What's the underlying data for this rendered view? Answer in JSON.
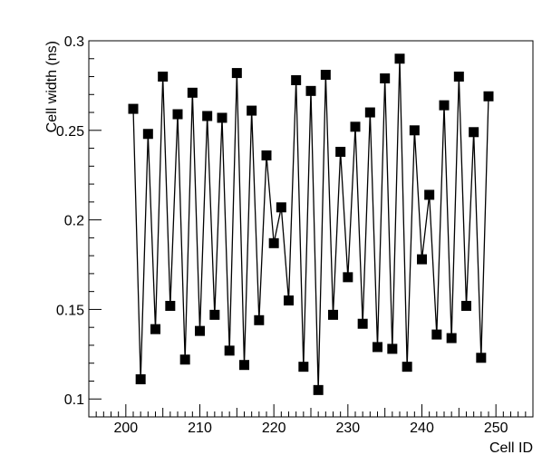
{
  "chart_data": {
    "type": "line",
    "title": "",
    "xlabel": "Cell ID",
    "ylabel": "Cell width (ns)",
    "xlim": [
      195,
      255
    ],
    "ylim": [
      0.09,
      0.3
    ],
    "x_major_ticks": [
      200,
      210,
      220,
      230,
      240,
      250
    ],
    "x_tick_labels": [
      "200",
      "210",
      "220",
      "230",
      "240",
      "250"
    ],
    "y_major_ticks": [
      0.1,
      0.15,
      0.2,
      0.25,
      0.3
    ],
    "y_tick_labels": [
      "0.1",
      "0.15",
      "0.2",
      "0.25",
      "0.3"
    ],
    "grid": false,
    "legend": "none",
    "marker": "square",
    "line_color": "#000000",
    "marker_color": "#000000",
    "series": [
      {
        "x": [
          201,
          202,
          203,
          204,
          205,
          206,
          207,
          208,
          209,
          210,
          211,
          212,
          213,
          214,
          215,
          216,
          217,
          218,
          219,
          220,
          221,
          222,
          223,
          224,
          225,
          226,
          227,
          228,
          229,
          230,
          231,
          232,
          233,
          234,
          235,
          236,
          237,
          238,
          239,
          240,
          241,
          242,
          243,
          244,
          245,
          246,
          247,
          248,
          249
        ],
        "values": [
          0.262,
          0.111,
          0.248,
          0.139,
          0.28,
          0.152,
          0.259,
          0.122,
          0.271,
          0.138,
          0.258,
          0.147,
          0.257,
          0.127,
          0.282,
          0.119,
          0.261,
          0.144,
          0.236,
          0.187,
          0.207,
          0.155,
          0.278,
          0.118,
          0.272,
          0.105,
          0.281,
          0.147,
          0.238,
          0.168,
          0.252,
          0.142,
          0.26,
          0.129,
          0.279,
          0.128,
          0.29,
          0.118,
          0.25,
          0.178,
          0.214,
          0.136,
          0.264,
          0.134,
          0.28,
          0.152,
          0.249,
          0.123,
          0.269
        ]
      }
    ]
  }
}
